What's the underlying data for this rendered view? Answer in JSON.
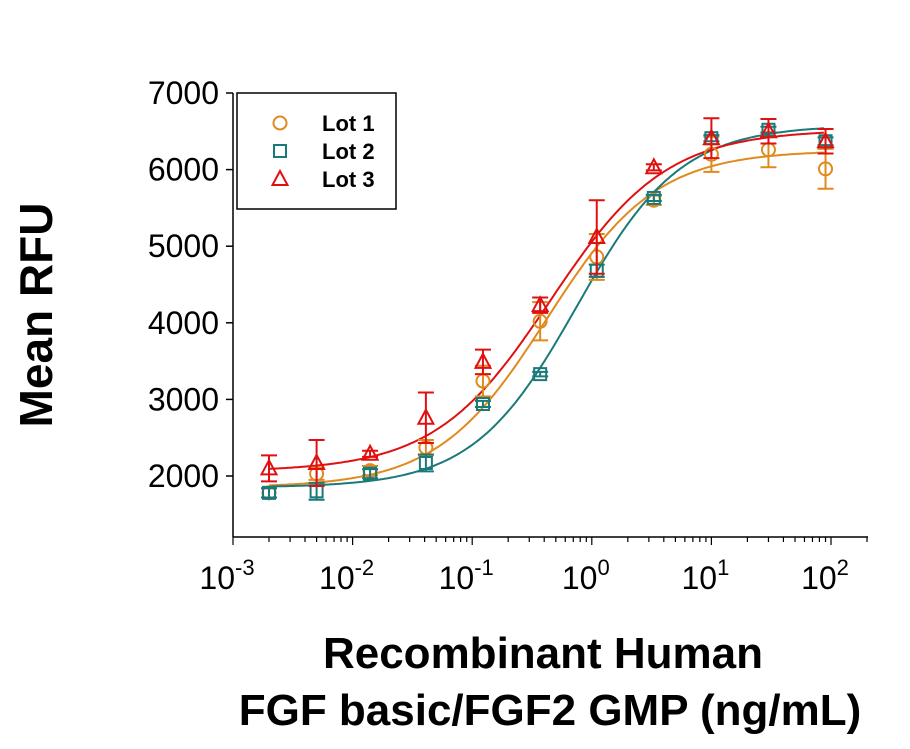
{
  "chart_data": {
    "type": "scatter",
    "title": "",
    "xlabel_line1": "Recombinant Human",
    "xlabel_line2": "FGF basic/FGF2 GMP (ng/mL)",
    "ylabel": "Mean RFU",
    "x_scale": "log",
    "xlim": [
      0.001,
      210
    ],
    "ylim": [
      1200,
      7000
    ],
    "x_ticks": [
      {
        "base": "10",
        "exp": "-3",
        "value": 0.001
      },
      {
        "base": "10",
        "exp": "-2",
        "value": 0.01
      },
      {
        "base": "10",
        "exp": "-1",
        "value": 0.1
      },
      {
        "base": "10",
        "exp": "0",
        "value": 1
      },
      {
        "base": "10",
        "exp": "1",
        "value": 10
      },
      {
        "base": "10",
        "exp": "2",
        "value": 100
      }
    ],
    "y_ticks": [
      "2000",
      "3000",
      "4000",
      "5000",
      "6000",
      "7000"
    ],
    "grid": false,
    "legend_position": "top-left",
    "x": [
      0.002,
      0.005,
      0.014,
      0.041,
      0.123,
      0.37,
      1.1,
      3.3,
      10,
      30,
      90
    ],
    "series": [
      {
        "name": "Lot 1",
        "marker": "circle",
        "color": "#E08A1E",
        "values": [
          1780,
          2030,
          2070,
          2370,
          3240,
          4020,
          4860,
          5600,
          6200,
          6260,
          6010
        ],
        "errors": [
          60,
          80,
          60,
          100,
          200,
          250,
          300,
          60,
          230,
          230,
          260
        ],
        "fit": {
          "bottom": 1850,
          "top": 6250,
          "ec50": 0.42,
          "hill": 0.95
        }
      },
      {
        "name": "Lot 2",
        "marker": "square",
        "color": "#1A7A7A",
        "values": [
          1780,
          1800,
          2030,
          2170,
          2940,
          3330,
          4680,
          5630,
          6410,
          6520,
          6370
        ],
        "errors": [
          60,
          110,
          60,
          110,
          40,
          30,
          80,
          40,
          40,
          40,
          50
        ],
        "fit": {
          "bottom": 1850,
          "top": 6580,
          "ec50": 0.75,
          "hill": 1.0
        }
      },
      {
        "name": "Lot 3",
        "marker": "triangle",
        "color": "#E01010",
        "values": [
          2100,
          2170,
          2290,
          2760,
          3490,
          4230,
          5120,
          6030,
          6410,
          6500,
          6370
        ],
        "errors": [
          170,
          300,
          40,
          330,
          160,
          100,
          480,
          40,
          260,
          160,
          160
        ],
        "fit": {
          "bottom": 2060,
          "top": 6520,
          "ec50": 0.45,
          "hill": 0.9
        }
      }
    ]
  }
}
